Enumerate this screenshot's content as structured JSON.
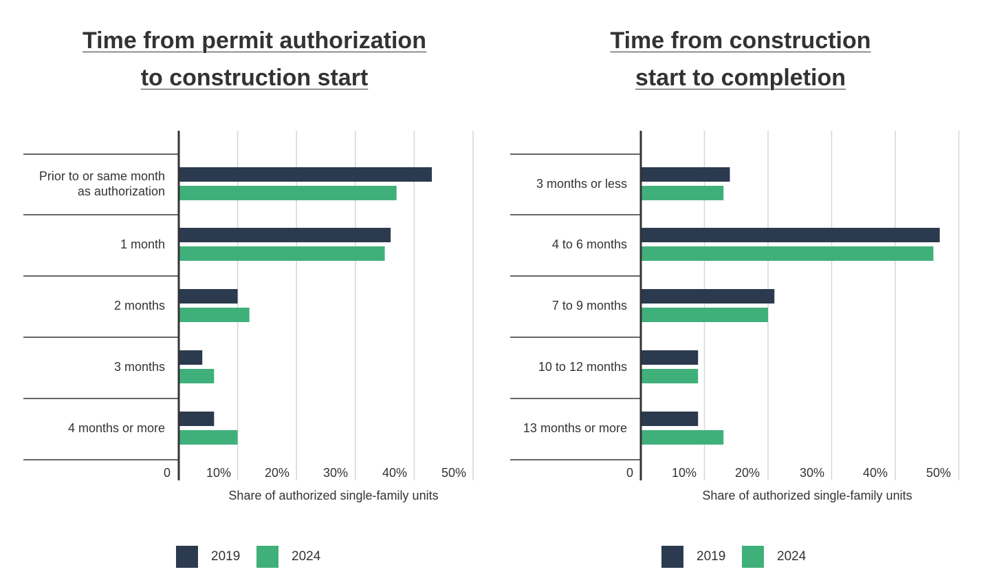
{
  "chart_data": [
    {
      "type": "bar",
      "orientation": "horizontal",
      "title_lines": [
        "Time from permit authorization ",
        "to construction start"
      ],
      "categories": [
        "Prior to or same month|as authorization",
        "1 month",
        "2 months",
        "3 months",
        "4 months or more"
      ],
      "series": [
        {
          "name": "2019",
          "color": "#2b3a4e",
          "values": [
            43,
            36,
            10,
            4,
            6
          ]
        },
        {
          "name": "2024",
          "color": "#40b07b",
          "values": [
            37,
            35,
            12,
            6,
            10
          ]
        }
      ],
      "xlabel": "Share of authorized single-family units",
      "xlim": [
        0,
        50
      ],
      "tick_labels": [
        "0",
        "10%",
        "20%",
        "30%",
        "40%",
        "50%"
      ],
      "tick_values": [
        0,
        10,
        20,
        30,
        40,
        50
      ],
      "grid": true,
      "legend_position": "bottom"
    },
    {
      "type": "bar",
      "orientation": "horizontal",
      "title_lines": [
        "Time from construction ",
        "start to completion"
      ],
      "categories": [
        "3 months or less",
        "4 to 6 months",
        "7 to 9 months",
        "10 to 12 months",
        "13 months or more"
      ],
      "series": [
        {
          "name": "2019",
          "color": "#2b3a4e",
          "values": [
            14,
            47,
            21,
            9,
            9
          ]
        },
        {
          "name": "2024",
          "color": "#40b07b",
          "values": [
            13,
            46,
            20,
            9,
            13
          ]
        }
      ],
      "xlabel": "Share of authorized single-family units",
      "xlim": [
        0,
        50
      ],
      "tick_labels": [
        "0",
        "10%",
        "20%",
        "30%",
        "40%",
        "50%"
      ],
      "tick_values": [
        0,
        10,
        20,
        30,
        40,
        50
      ],
      "grid": true,
      "legend_position": "bottom"
    }
  ]
}
